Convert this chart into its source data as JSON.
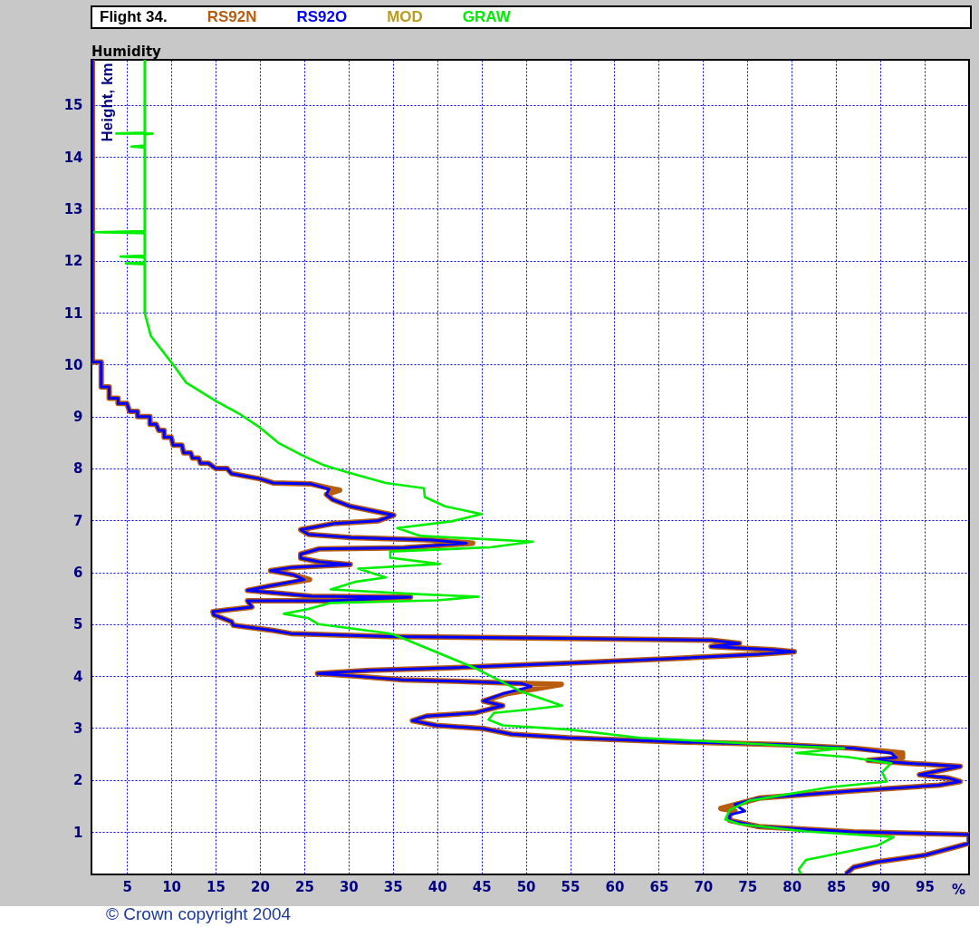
{
  "chart_data": {
    "type": "line",
    "subtitle": "Flight 34.",
    "title": "Humidity",
    "ylabel": "Height, km",
    "xlabel": "%",
    "xlim": [
      1,
      100
    ],
    "ylim": [
      0.18,
      15.87
    ],
    "xticks": [
      5,
      10,
      15,
      20,
      25,
      30,
      35,
      40,
      45,
      50,
      55,
      60,
      65,
      70,
      75,
      80,
      85,
      90,
      95
    ],
    "yticks": [
      1,
      2,
      3,
      4,
      5,
      6,
      7,
      8,
      9,
      10,
      11,
      12,
      13,
      14,
      15
    ],
    "grid": true,
    "legend": "top",
    "line_style": "solid",
    "marker": "none",
    "annotations": [
      "© Crown copyright 2004"
    ],
    "series": [
      {
        "name": "RS92N",
        "color": "#b85c10",
        "x": [
          1.1,
          1.1,
          2.1,
          2.1,
          3,
          3,
          4,
          4,
          5,
          5.3,
          6.2,
          6.2,
          7.6,
          7.6,
          8.3,
          8.6,
          9.2,
          9.2,
          10,
          10.2,
          11.2,
          11.4,
          12.2,
          12.4,
          13.1,
          13.3,
          14.2,
          15,
          16.3,
          16.8,
          20,
          21.5,
          25.8,
          27.8,
          29,
          27.5,
          28.2,
          30.2,
          35.1,
          33.3,
          28.4,
          24.6,
          25.5,
          30.3,
          39.5,
          44,
          36.3,
          26.7,
          24.6,
          24.6,
          26.7,
          30.2,
          23.5,
          21.2,
          23.8,
          25.6,
          21.2,
          18.6,
          25.8,
          37,
          27.8,
          18.6,
          19.1,
          14.7,
          14.8,
          16.8,
          17,
          21.5,
          23.5,
          34.7,
          52.2,
          70.9,
          74.1,
          70.9,
          77.9,
          80.3,
          76.3,
          66.6,
          54.9,
          41.5,
          32.4,
          26.5,
          30.8,
          36.1,
          44.2,
          49.5,
          54,
          47.8,
          45.2,
          47.4,
          44.2,
          38.8,
          37.2,
          39.9,
          45.2,
          48.4,
          54.9,
          65.6,
          78.9,
          87,
          92.5,
          92.5,
          88.6,
          93.4,
          99,
          94.4,
          97.6,
          99,
          96.6,
          87,
          76.3,
          72,
          73.6,
          73,
          73,
          76.3,
          87,
          100,
          100,
          95,
          89.6,
          87,
          86.1
        ],
        "values": [
          15.87,
          10.05,
          10.05,
          9.57,
          9.57,
          9.35,
          9.35,
          9.25,
          9.25,
          9.1,
          9.1,
          9,
          9,
          8.85,
          8.85,
          8.73,
          8.73,
          8.6,
          8.6,
          8.45,
          8.45,
          8.3,
          8.3,
          8.2,
          8.2,
          8.1,
          8.1,
          8,
          8,
          7.9,
          7.8,
          7.72,
          7.7,
          7.62,
          7.58,
          7.5,
          7.4,
          7.27,
          7.1,
          6.99,
          6.94,
          6.82,
          6.73,
          6.67,
          6.62,
          6.56,
          6.47,
          6.45,
          6.35,
          6.27,
          6.2,
          6.15,
          6.09,
          6.03,
          5.95,
          5.86,
          5.74,
          5.65,
          5.54,
          5.52,
          5.45,
          5.45,
          5.33,
          5.24,
          5.18,
          5.05,
          4.98,
          4.88,
          4.82,
          4.76,
          4.73,
          4.69,
          4.63,
          4.57,
          4.51,
          4.47,
          4.42,
          4.34,
          4.25,
          4.16,
          4.11,
          4.05,
          4,
          3.93,
          3.89,
          3.86,
          3.84,
          3.66,
          3.52,
          3.43,
          3.29,
          3.23,
          3.14,
          3.05,
          2.99,
          2.88,
          2.81,
          2.74,
          2.68,
          2.61,
          2.52,
          2.43,
          2.38,
          2.32,
          2.26,
          2.1,
          2.04,
          1.97,
          1.9,
          1.79,
          1.65,
          1.45,
          1.4,
          1.33,
          1.22,
          1.1,
          1,
          0.95,
          0.78,
          0.55,
          0.42,
          0.32,
          0.19
        ]
      },
      {
        "name": "RS92O",
        "color": "#0000ff",
        "x": [
          1.1,
          1.1,
          2.1,
          2.1,
          3,
          3,
          4,
          4,
          5,
          5.3,
          6.2,
          6.2,
          7.6,
          7.6,
          8.3,
          8.6,
          9.2,
          9.2,
          10,
          10.2,
          11.2,
          11.4,
          12.2,
          12.4,
          13.1,
          13.3,
          14.2,
          15,
          16.3,
          16.8,
          20,
          21.5,
          25.8,
          27.8,
          27.5,
          28.2,
          30.2,
          35.1,
          33.3,
          28.4,
          24.6,
          25.5,
          30.3,
          39.5,
          43.3,
          36.3,
          26.7,
          24.6,
          24.6,
          26.7,
          30.2,
          23.5,
          21.2,
          23.8,
          25,
          21.2,
          18.6,
          25.8,
          37,
          27.8,
          18.6,
          19.1,
          14.7,
          14.8,
          16.8,
          17,
          21.5,
          23.5,
          34.7,
          52.2,
          70.9,
          74.1,
          70.9,
          77.9,
          80.3,
          76.3,
          66.6,
          54.9,
          41.5,
          32.4,
          26.5,
          30.8,
          36.1,
          44.2,
          49.5,
          50.6,
          47.4,
          45.2,
          47.4,
          44.2,
          38.8,
          37.2,
          39.9,
          45.2,
          48.4,
          54.9,
          65.6,
          78.9,
          87,
          91.2,
          91.8,
          88.6,
          93.4,
          99,
          94.4,
          97.6,
          99,
          96.6,
          87,
          76.3,
          73.6,
          74.7,
          73,
          73,
          76.3,
          87,
          100,
          100,
          95,
          89.6,
          87,
          86.1
        ],
        "values": [
          15.87,
          10.05,
          10.05,
          9.57,
          9.57,
          9.35,
          9.35,
          9.25,
          9.25,
          9.1,
          9.1,
          9,
          9,
          8.85,
          8.85,
          8.73,
          8.73,
          8.6,
          8.6,
          8.45,
          8.45,
          8.3,
          8.3,
          8.2,
          8.2,
          8.1,
          8.1,
          8,
          8,
          7.9,
          7.8,
          7.72,
          7.7,
          7.6,
          7.5,
          7.4,
          7.27,
          7.1,
          6.99,
          6.94,
          6.82,
          6.73,
          6.67,
          6.62,
          6.56,
          6.47,
          6.45,
          6.35,
          6.27,
          6.2,
          6.15,
          6.09,
          6.03,
          5.95,
          5.86,
          5.74,
          5.65,
          5.54,
          5.52,
          5.45,
          5.45,
          5.33,
          5.24,
          5.18,
          5.05,
          4.98,
          4.88,
          4.82,
          4.76,
          4.73,
          4.69,
          4.63,
          4.57,
          4.51,
          4.47,
          4.42,
          4.34,
          4.25,
          4.16,
          4.11,
          4.05,
          4,
          3.93,
          3.89,
          3.86,
          3.8,
          3.66,
          3.52,
          3.43,
          3.29,
          3.23,
          3.14,
          3.05,
          2.99,
          2.88,
          2.81,
          2.74,
          2.68,
          2.61,
          2.52,
          2.43,
          2.38,
          2.32,
          2.26,
          2.1,
          2.04,
          1.97,
          1.9,
          1.79,
          1.65,
          1.53,
          1.4,
          1.33,
          1.22,
          1.1,
          1,
          0.95,
          0.78,
          0.55,
          0.42,
          0.32,
          0.19
        ]
      },
      {
        "name": "MOD",
        "color": "#b89c20"
      },
      {
        "name": "GRAW",
        "color": "#00ee00",
        "x": [
          7,
          7,
          3.8,
          7.9,
          7,
          7,
          5.5,
          7,
          7,
          7,
          1.3,
          7,
          7,
          4.3,
          7,
          7,
          4.9,
          7,
          7,
          7.7,
          10.2,
          11.7,
          15,
          17.7,
          19.9,
          22.1,
          24.8,
          27.1,
          29.8,
          34.2,
          38.5,
          38.6,
          40.9,
          45,
          41.6,
          35.5,
          38.1,
          50.8,
          46,
          34.7,
          34.7,
          40.3,
          31.1,
          34.2,
          30.9,
          28,
          37.6,
          44.7,
          40,
          28,
          25.4,
          22.7,
          25.4,
          26.6,
          34.2,
          35.1,
          44.2,
          49.5,
          54.1,
          50.6,
          46.4,
          45.8,
          47.4,
          54.9,
          62.9,
          70.9,
          80.5,
          85.9,
          80.5,
          86.4,
          91.2,
          90.2,
          90.7,
          84.3,
          75.2,
          73,
          72.5,
          74.1,
          81.6,
          91.5,
          89.7,
          81.6,
          80.8,
          81
        ],
        "values": [
          15.87,
          14.47,
          14.45,
          14.45,
          14.43,
          14.22,
          14.2,
          14.18,
          12.6,
          12.57,
          12.55,
          12.53,
          12.1,
          12.08,
          12.06,
          11.97,
          11.95,
          11.93,
          11,
          10.55,
          10,
          9.65,
          9.3,
          9.05,
          8.8,
          8.49,
          8.25,
          8.07,
          7.93,
          7.72,
          7.62,
          7.45,
          7.27,
          7.12,
          6.98,
          6.85,
          6.7,
          6.59,
          6.48,
          6.4,
          6.28,
          6.16,
          6.07,
          5.9,
          5.82,
          5.67,
          5.58,
          5.53,
          5.46,
          5.41,
          5.29,
          5.2,
          5.12,
          5,
          4.83,
          4.8,
          4.16,
          3.7,
          3.43,
          3.36,
          3.29,
          3.16,
          3.05,
          2.97,
          2.81,
          2.74,
          2.65,
          2.61,
          2.52,
          2.44,
          2.32,
          2.15,
          1.97,
          1.86,
          1.6,
          1.42,
          1.24,
          1.15,
          1.01,
          0.9,
          0.74,
          0.46,
          0.28,
          0.19
        ]
      }
    ]
  }
}
